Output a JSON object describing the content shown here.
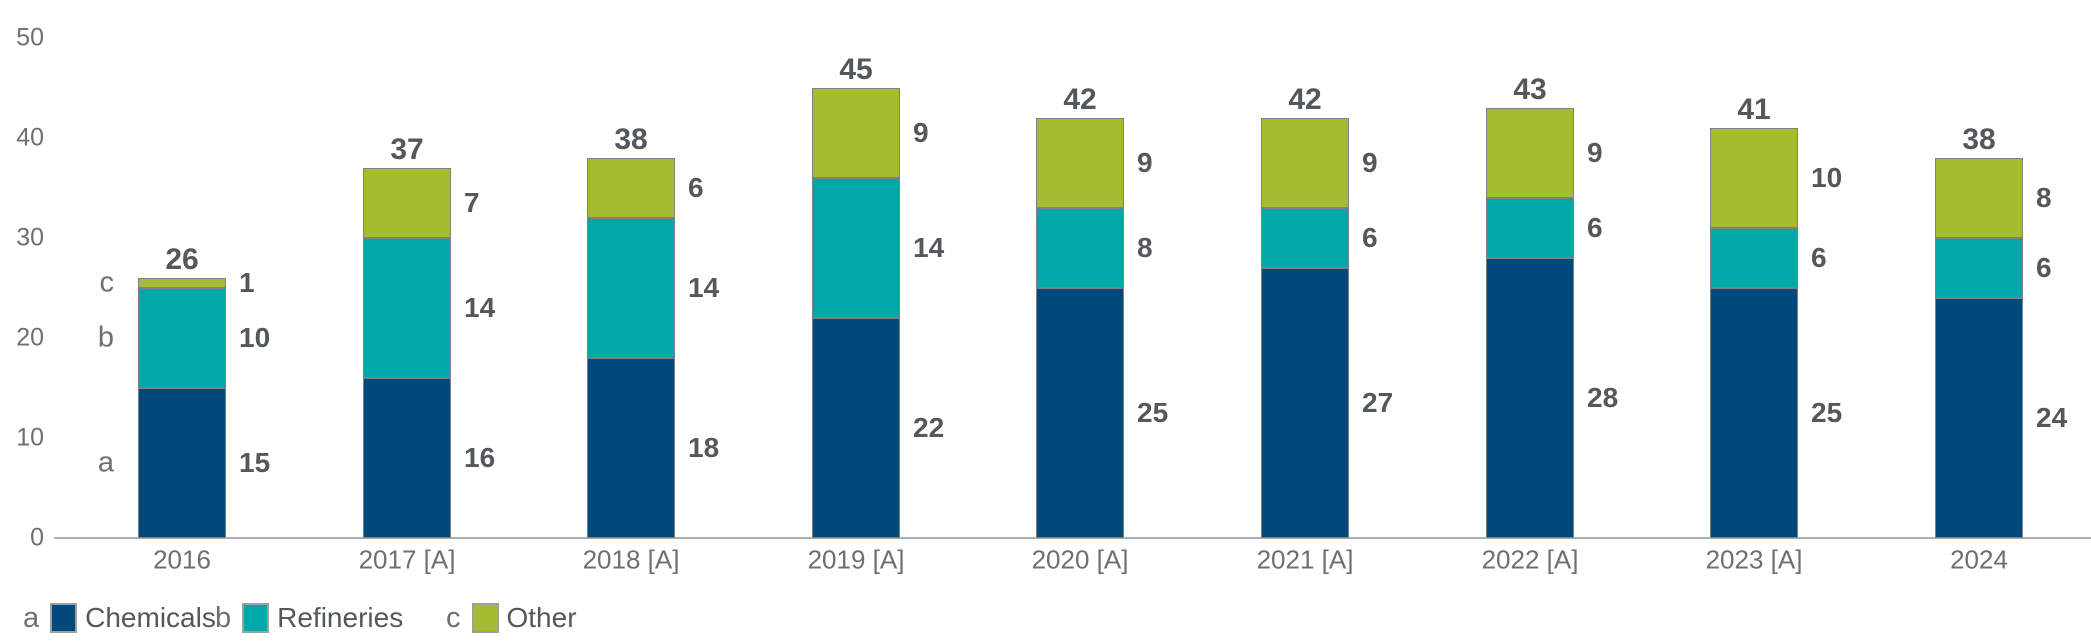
{
  "chart_data": {
    "type": "bar",
    "stacked": true,
    "categories": [
      "2016",
      "2017 [A]",
      "2018 [A]",
      "2019 [A]",
      "2020 [A]",
      "2021 [A]",
      "2022 [A]",
      "2023 [A]",
      "2024"
    ],
    "series": [
      {
        "letter": "a",
        "name": "Chemicals",
        "color": "#00497C",
        "values": [
          15,
          16,
          18,
          22,
          25,
          27,
          28,
          25,
          24
        ]
      },
      {
        "letter": "b",
        "name": "Refineries",
        "color": "#00A8AA",
        "values": [
          10,
          14,
          14,
          14,
          8,
          6,
          6,
          6,
          6
        ]
      },
      {
        "letter": "c",
        "name": "Other",
        "color": "#A6BC30",
        "values": [
          1,
          7,
          6,
          9,
          9,
          9,
          9,
          10,
          8
        ]
      }
    ],
    "totals": [
      26,
      37,
      38,
      45,
      42,
      42,
      43,
      41,
      38
    ],
    "y_axis": {
      "min": 0,
      "max": 50,
      "ticks": [
        0,
        10,
        20,
        30,
        40,
        50
      ]
    },
    "grid": false,
    "legend_position": "bottom-left",
    "colors": {
      "segment_border": "#7C8282",
      "axis_line": "#ABB0B0",
      "label_dark": "#53585A",
      "label_gray": "#6B7071"
    }
  }
}
